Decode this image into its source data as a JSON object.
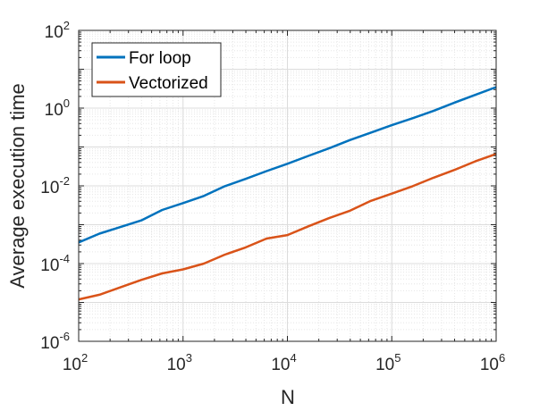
{
  "chart_data": {
    "type": "line",
    "title": "",
    "xlabel": "N",
    "ylabel": "Average execution time",
    "xscale": "log",
    "yscale": "log",
    "xlim": [
      100,
      1000000
    ],
    "ylim": [
      1e-06,
      100
    ],
    "grid": true,
    "minor_grid": true,
    "legend_position": "top-left",
    "x_ticks": [
      {
        "base": "10",
        "exp": "2"
      },
      {
        "base": "10",
        "exp": "3"
      },
      {
        "base": "10",
        "exp": "4"
      },
      {
        "base": "10",
        "exp": "5"
      },
      {
        "base": "10",
        "exp": "6"
      }
    ],
    "y_ticks": [
      {
        "base": "10",
        "exp": "-6"
      },
      {
        "base": "10",
        "exp": "-4"
      },
      {
        "base": "10",
        "exp": "-2"
      },
      {
        "base": "10",
        "exp": "0"
      },
      {
        "base": "10",
        "exp": "2"
      }
    ],
    "x": [
      100,
      158,
      251,
      398,
      631,
      1000,
      1585,
      2512,
      3981,
      6310,
      10000,
      15849,
      25119,
      39811,
      63096,
      100000,
      158489,
      251189,
      398107,
      630957,
      1000000
    ],
    "series": [
      {
        "name": "For loop",
        "color": "#0072BD",
        "values": [
          0.00035,
          0.00059,
          0.00087,
          0.00129,
          0.0024,
          0.0036,
          0.0055,
          0.0098,
          0.0151,
          0.024,
          0.037,
          0.059,
          0.093,
          0.151,
          0.234,
          0.363,
          0.55,
          0.85,
          1.38,
          2.19,
          3.47
        ]
      },
      {
        "name": "Vectorized",
        "color": "#D95319",
        "values": [
          1.2e-05,
          1.58e-05,
          2.45e-05,
          3.8e-05,
          5.6e-05,
          7.1e-05,
          0.0001,
          0.00017,
          0.00026,
          0.00044,
          0.00054,
          0.00091,
          0.00148,
          0.00229,
          0.0041,
          0.0063,
          0.0098,
          0.0162,
          0.0257,
          0.0427,
          0.066
        ]
      }
    ]
  }
}
